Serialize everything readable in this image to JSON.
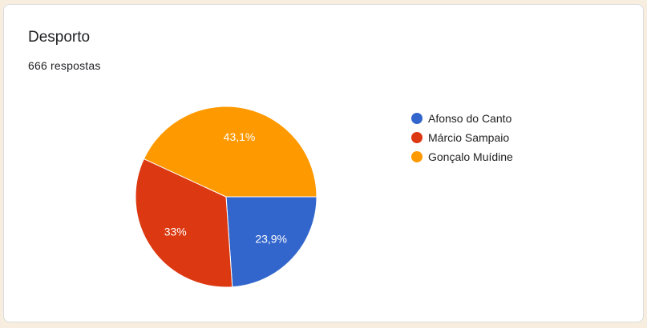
{
  "card": {
    "title": "Desporto",
    "responses": "666 respostas"
  },
  "chart_data": {
    "type": "pie",
    "categories": [
      "Afonso do Canto",
      "Márcio Sampaio",
      "Gonçalo Muídine"
    ],
    "values": [
      23.9,
      33,
      43.1
    ],
    "labels": [
      "23,9%",
      "33%",
      "43,1%"
    ],
    "colors": [
      "#3366cc",
      "#dc3912",
      "#ff9900"
    ],
    "legend_position": "right"
  }
}
